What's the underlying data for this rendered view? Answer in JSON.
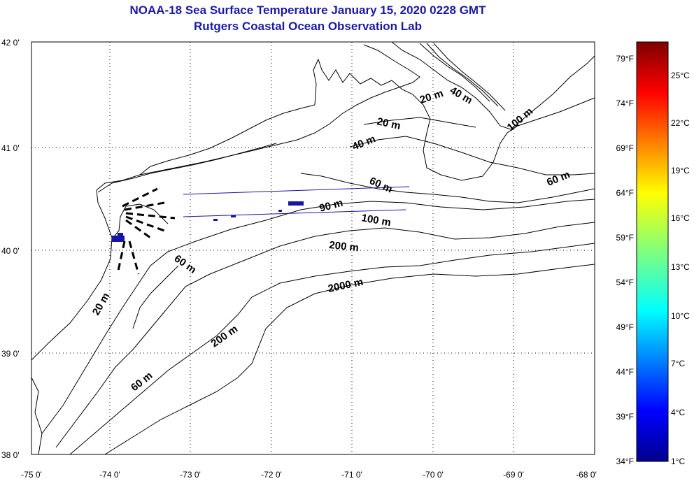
{
  "title": {
    "line1": "NOAA-18 Sea Surface Temperature January 15, 2020 0228 GMT",
    "line2": "Rutgers Coastal Ocean Observation Lab"
  },
  "map": {
    "lon_ticks": [
      "-75 0'",
      "-74 0'",
      "-73 0'",
      "-72 0'",
      "-71 0'",
      "-70 0'",
      "-69 0'",
      "-68 0'"
    ],
    "lat_ticks": [
      "42 0'",
      "41 0'",
      "40 0'",
      "39 0'",
      "38 0'"
    ],
    "gridlines": true,
    "colors": {
      "land_outline": "#000000",
      "sst_patch": "#1515a8",
      "title": "#1a1aa6"
    }
  },
  "depth_labels": [
    "20 m",
    "40 m",
    "20 m",
    "40 m",
    "100 m",
    "60 m",
    "60 m",
    "90 m",
    "100 m",
    "200 m",
    "60 m",
    "2000 m",
    "20 m",
    "200 m",
    "60 m"
  ],
  "colorbar": {
    "fahrenheit": [
      "79°F",
      "74°F",
      "69°F",
      "64°F",
      "59°F",
      "54°F",
      "49°F",
      "44°F",
      "39°F",
      "34°F"
    ],
    "celsius": [
      "25°C",
      "22°C",
      "19°C",
      "16°C",
      "13°C",
      "10°C",
      "7°C",
      "4°C",
      "1°C"
    ]
  }
}
